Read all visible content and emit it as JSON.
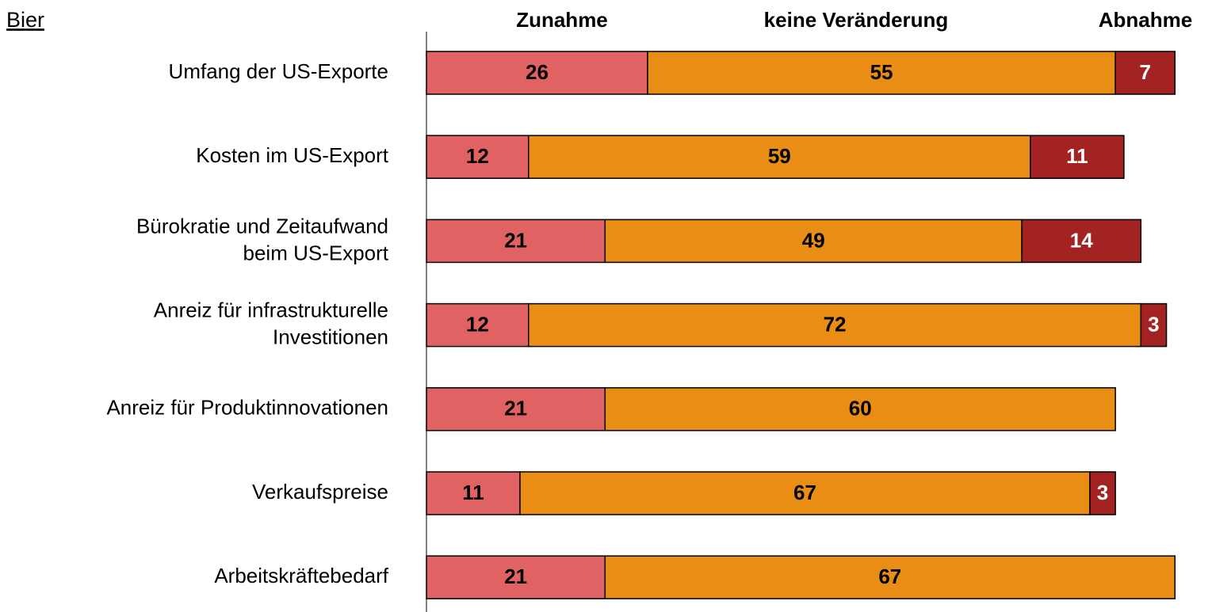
{
  "chart_data": {
    "type": "stacked-barh",
    "title": "Bier",
    "categories": [
      "Umfang der US-Exporte",
      "Kosten im US-Export",
      "Bürokratie und Zeitaufwand\nbeim US-Export",
      "Anreiz für infrastrukturelle\nInvestitionen",
      "Anreiz für Produktinnovationen",
      "Verkaufspreise",
      "Arbeitskräftebedarf"
    ],
    "series": [
      {
        "name": "Zunahme",
        "color": "#e06262",
        "label_color": "#000000",
        "values": [
          26,
          12,
          21,
          12,
          21,
          11,
          21
        ]
      },
      {
        "name": "keine Veränderung",
        "color": "#e98d15",
        "label_color": "#000000",
        "values": [
          55,
          59,
          49,
          72,
          60,
          67,
          67
        ]
      },
      {
        "name": "Abnahme",
        "color": "#a32222",
        "label_color": "#ffffff",
        "values": [
          7,
          11,
          14,
          3,
          null,
          3,
          null
        ]
      }
    ]
  }
}
